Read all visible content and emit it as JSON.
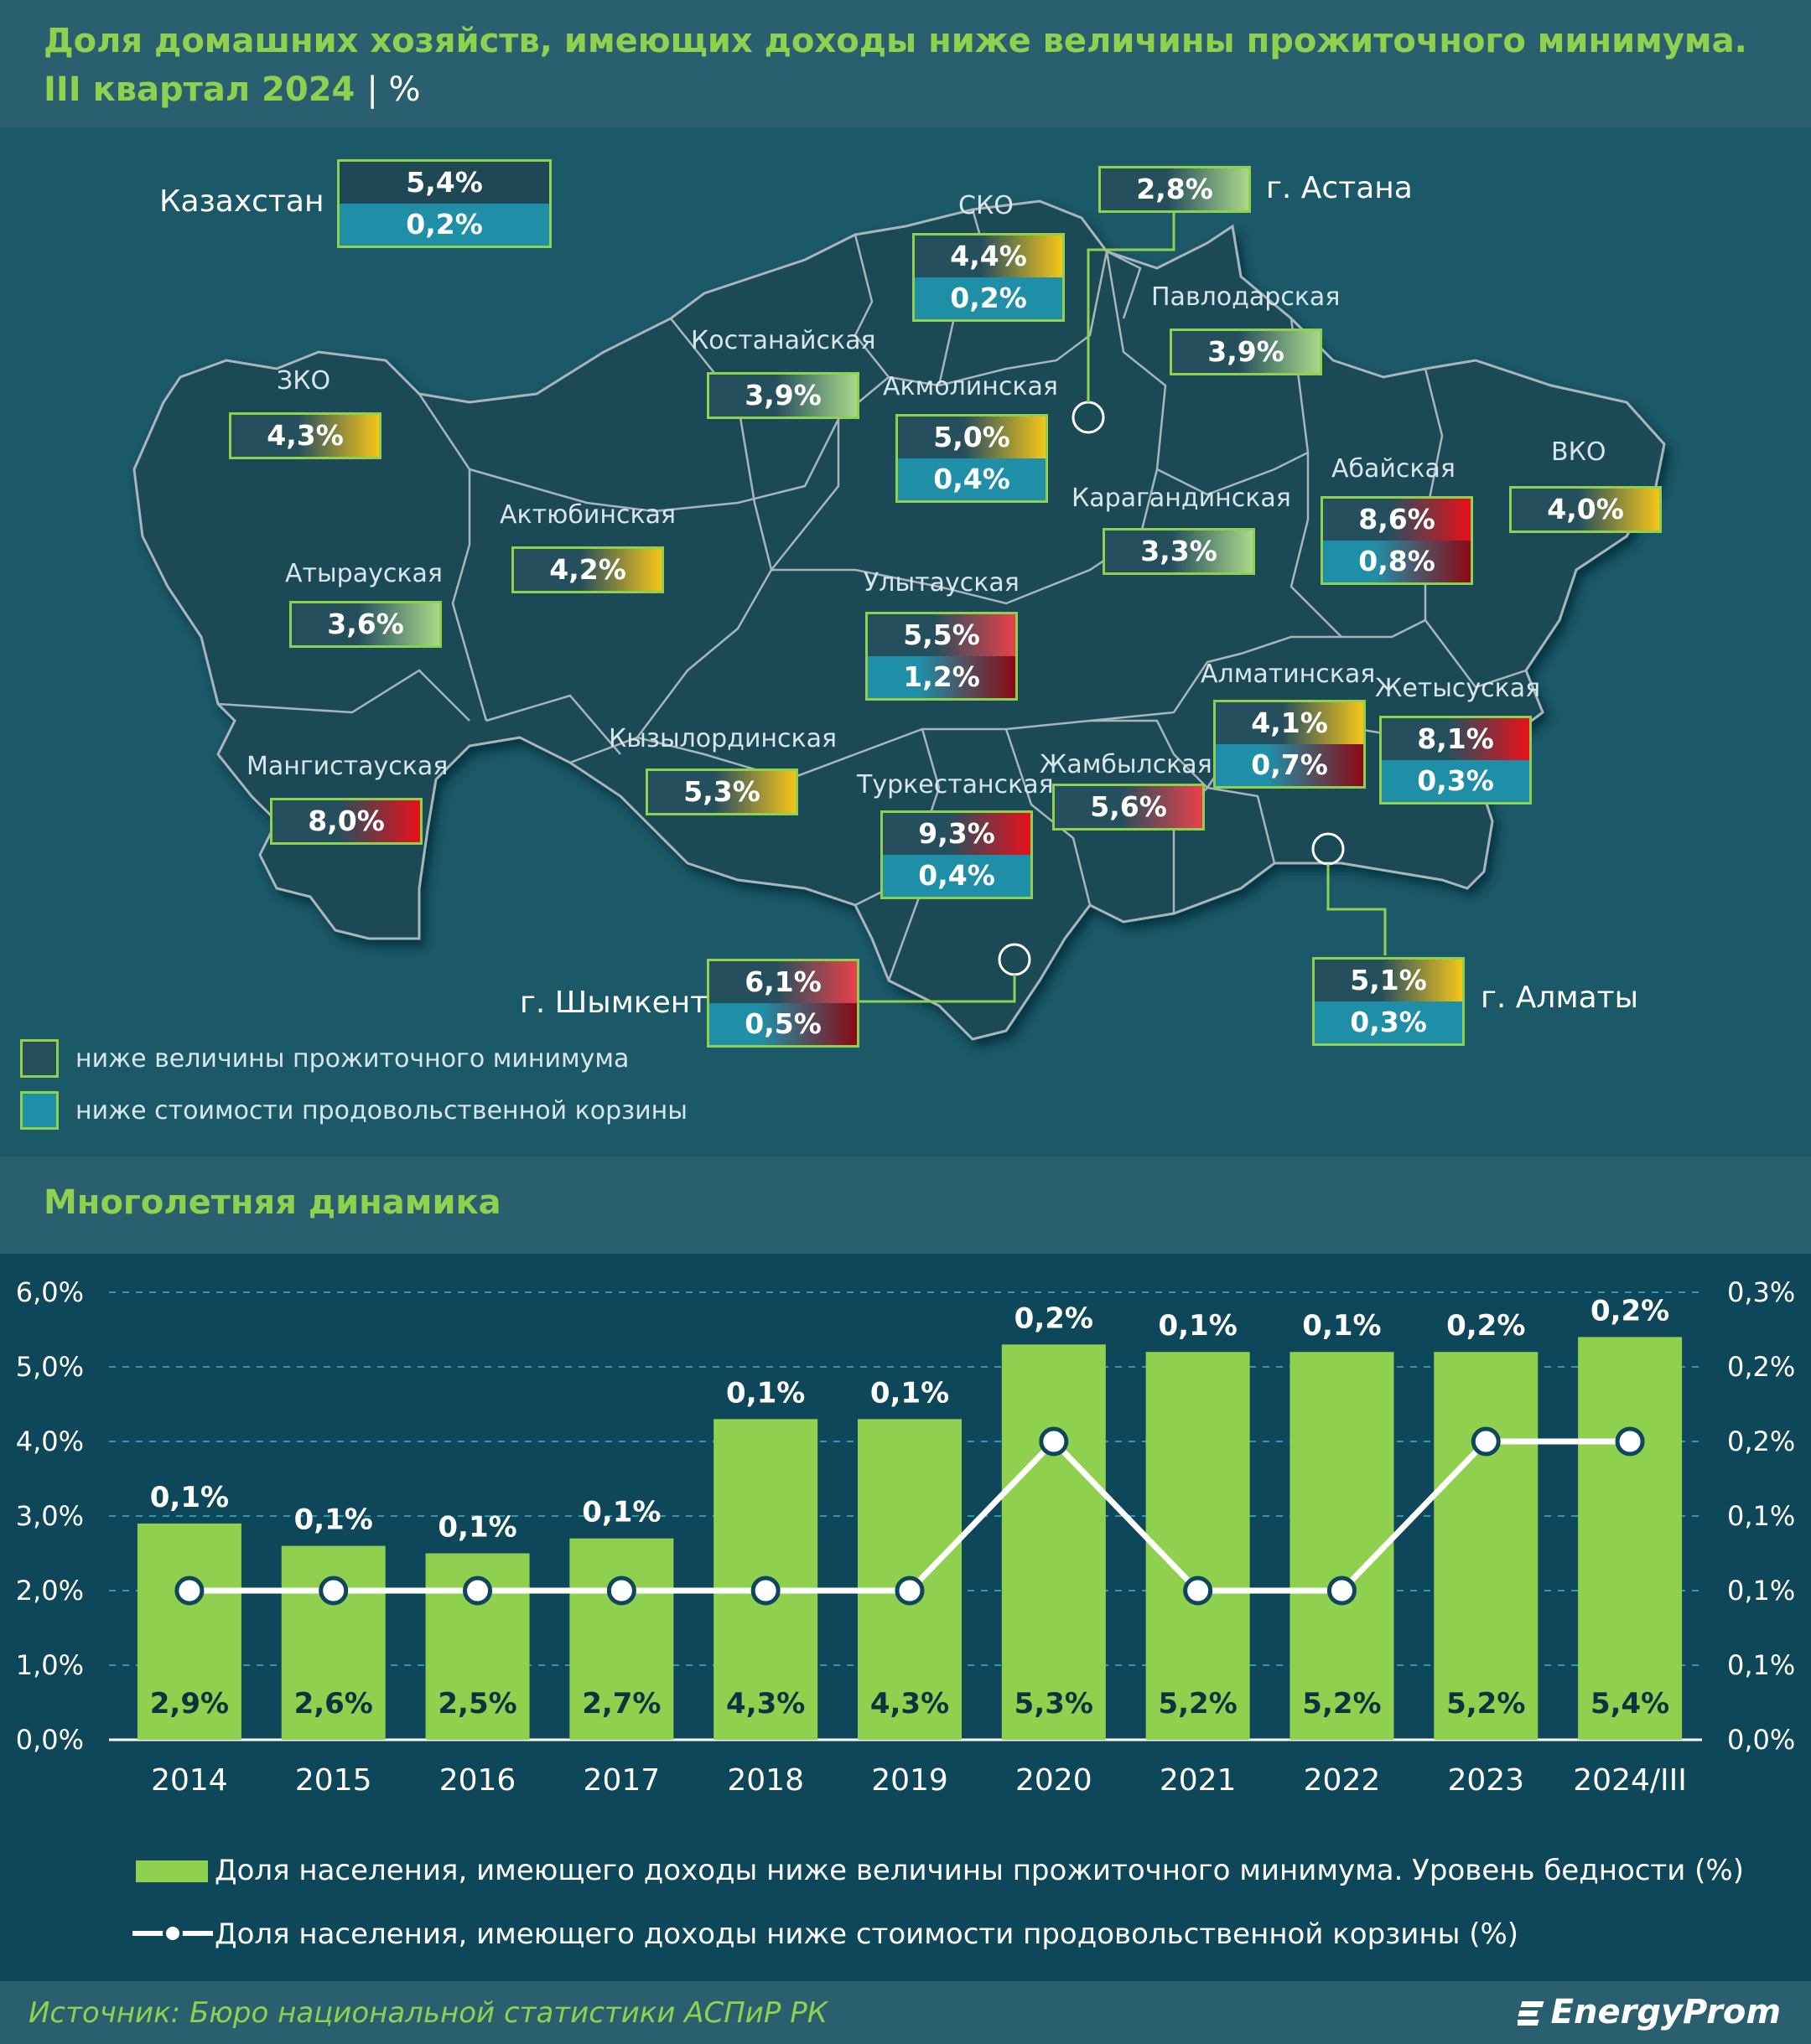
{
  "header": {
    "title_line1": "Доля домашних хозяйств, имеющих доходы ниже величины прожиточного минимума.",
    "title_period": "III квартал 2024",
    "title_unit": "| %"
  },
  "map": {
    "country": {
      "label": "Казахстан",
      "poverty": "5,4%",
      "food": "0,2%"
    },
    "regions": [
      {
        "key": "zko",
        "label": "ЗКО",
        "poverty": "4,3%",
        "food": "",
        "color": "#f5c518"
      },
      {
        "key": "atyrau",
        "label": "Атырауская",
        "poverty": "3,6%",
        "food": "",
        "color": "#a9d88a"
      },
      {
        "key": "mangystau",
        "label": "Мангистауская",
        "poverty": "8,0%",
        "food": "",
        "color": "#e8101a"
      },
      {
        "key": "aktobe",
        "label": "Актюбинская",
        "poverty": "4,2%",
        "food": "",
        "color": "#f5c518"
      },
      {
        "key": "kostanay",
        "label": "Костанайская",
        "poverty": "3,9%",
        "food": "",
        "color": "#a9d88a"
      },
      {
        "key": "sko",
        "label": "СКО",
        "poverty": "4,4%",
        "food": "0,2%",
        "color": "#f5c518"
      },
      {
        "key": "akmola",
        "label": "Акмолинская",
        "poverty": "5,0%",
        "food": "0,4%",
        "color": "#f5c518"
      },
      {
        "key": "astana",
        "label": "г. Астана",
        "poverty": "2,8%",
        "food": "",
        "color": "#a9d88a"
      },
      {
        "key": "pavlodar",
        "label": "Павлодарская",
        "poverty": "3,9%",
        "food": "",
        "color": "#a9d88a"
      },
      {
        "key": "karaganda",
        "label": "Карагандинская",
        "poverty": "3,3%",
        "food": "",
        "color": "#a9d88a"
      },
      {
        "key": "abai",
        "label": "Абайская",
        "poverty": "8,6%",
        "food": "0,8%",
        "color": "#e8101a"
      },
      {
        "key": "vko",
        "label": "ВКО",
        "poverty": "4,0%",
        "food": "",
        "color": "#f5c518"
      },
      {
        "key": "ulytau",
        "label": "Улытауская",
        "poverty": "5,5%",
        "food": "1,2%",
        "color": "#e8414a"
      },
      {
        "key": "kyzylorda",
        "label": "Кызылординская",
        "poverty": "5,3%",
        "food": "",
        "color": "#f5c518"
      },
      {
        "key": "turkestan",
        "label": "Туркестанская",
        "poverty": "9,3%",
        "food": "0,4%",
        "color": "#e8101a"
      },
      {
        "key": "zhambyl",
        "label": "Жамбылская",
        "poverty": "5,6%",
        "food": "",
        "color": "#e8414a"
      },
      {
        "key": "almaty_obl",
        "label": "Алматинская",
        "poverty": "4,1%",
        "food": "0,7%",
        "color": "#f5c518"
      },
      {
        "key": "zhetysu",
        "label": "Жетысуская",
        "poverty": "8,1%",
        "food": "0,3%",
        "color": "#e8101a"
      },
      {
        "key": "shymkent",
        "label": "г. Шымкент",
        "poverty": "6,1%",
        "food": "0,5%",
        "color": "#e8414a"
      },
      {
        "key": "almaty",
        "label": "г. Алматы",
        "poverty": "5,1%",
        "food": "0,3%",
        "color": "#f5c518"
      }
    ],
    "legend": {
      "item1": "ниже величины прожиточного минимума",
      "item2": "ниже стоимости продовольственной корзины"
    }
  },
  "section2_title": "Многолетняя динамика",
  "chart_data": {
    "type": "bar",
    "categories": [
      "2014",
      "2015",
      "2016",
      "2017",
      "2018",
      "2019",
      "2020",
      "2021",
      "2022",
      "2023",
      "2024/III"
    ],
    "series": [
      {
        "name": "Доля населения, имеющего доходы ниже величины прожиточного минимума. Уровень бедности (%)",
        "kind": "bar",
        "axis": "left",
        "values": [
          2.9,
          2.6,
          2.5,
          2.7,
          4.3,
          4.3,
          5.3,
          5.2,
          5.2,
          5.2,
          5.4
        ],
        "labels": [
          "2,9%",
          "2,6%",
          "2,5%",
          "2,7%",
          "4,3%",
          "4,3%",
          "5,3%",
          "5,2%",
          "5,2%",
          "5,2%",
          "5,4%"
        ],
        "color": "#8fd14f"
      },
      {
        "name": "Доля населения, имеющего доходы ниже стоимости продовольственной корзины (%)",
        "kind": "line",
        "axis": "right",
        "values": [
          0.1,
          0.1,
          0.1,
          0.1,
          0.1,
          0.1,
          0.2,
          0.1,
          0.1,
          0.2,
          0.2
        ],
        "labels": [
          "0,1%",
          "0,1%",
          "0,1%",
          "0,1%",
          "0,1%",
          "0,1%",
          "0,2%",
          "0,1%",
          "0,1%",
          "0,2%",
          "0,2%"
        ],
        "color": "#ffffff"
      }
    ],
    "ylim": [
      0,
      6
    ],
    "yticks": [
      "0,0%",
      "1,0%",
      "2,0%",
      "3,0%",
      "4,0%",
      "5,0%",
      "6,0%"
    ],
    "y2lim": [
      0,
      0.3
    ],
    "y2ticks": [
      "0,0%",
      "0,1%",
      "0,1%",
      "0,1%",
      "0,2%",
      "0,2%",
      "0,3%"
    ],
    "grid": true,
    "legend_position": "bottom"
  },
  "footer": {
    "source": "Источник: Бюро национальной статистики АСПиР РК",
    "logo": "EnergyProm"
  }
}
